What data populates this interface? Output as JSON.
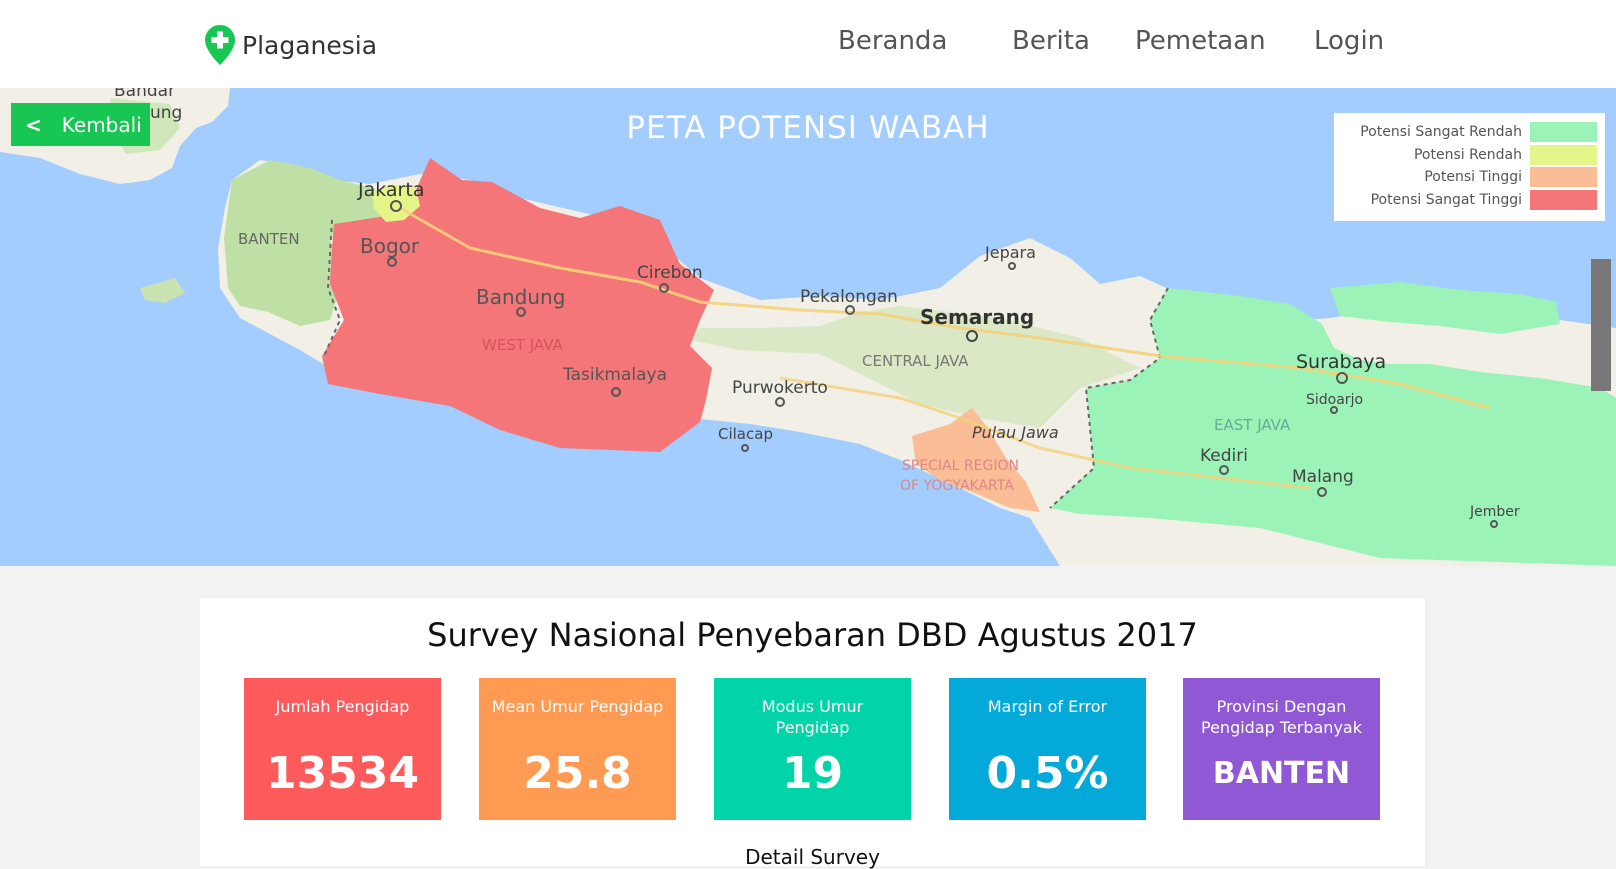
{
  "brand": {
    "name": "Plaganesia"
  },
  "nav": {
    "items": [
      "Beranda",
      "Berita",
      "Pemetaan",
      "Login"
    ]
  },
  "map": {
    "title": "PETA POTENSI WABAH",
    "back_label": "Kembali",
    "legend": [
      {
        "label": "Potensi Sangat Rendah",
        "color": "#9cf3b8"
      },
      {
        "label": "Potensi Rendah",
        "color": "#e6f58a"
      },
      {
        "label": "Potensi Tinggi",
        "color": "#fbbd95"
      },
      {
        "label": "Potensi Sangat Tinggi",
        "color": "#f57678"
      }
    ],
    "places": {
      "bandar": "Bandar",
      "lampung": "ung",
      "jakarta": "Jakarta",
      "banten": "BANTEN",
      "bogor": "Bogor",
      "cirebon": "Cirebon",
      "bandung": "Bandung",
      "west_java": "WEST JAVA",
      "tasikmalaya": "Tasikmalaya",
      "jepara": "Jepara",
      "pekalongan": "Pekalongan",
      "semarang": "Semarang",
      "central_java": "CENTRAL JAVA",
      "purwokerto": "Purwokerto",
      "cilacap": "Cilacap",
      "pulau_jawa": "Pulau Jawa",
      "special_region_1": "SPECIAL REGION",
      "special_region_2": "OF YOGYAKARTA",
      "surabaya": "Surabaya",
      "sidoarjo": "Sidoarjo",
      "east_java": "EAST JAVA",
      "kediri": "Kediri",
      "malang": "Malang",
      "jember": "Jember"
    },
    "region_colors": {
      "banten": "#bfe0a4",
      "jakarta": "#e6f58a",
      "west_java": "#f57678",
      "central_java": "#f1efe6",
      "yogyakarta": "#fbbd95",
      "east_java": "#9cf3b8"
    }
  },
  "survey": {
    "title": "Survey Nasional Penyebaran DBD Agustus 2017",
    "stats": [
      {
        "label": "Jumlah Pengidap",
        "value": "13534",
        "color": "#fd5a5b"
      },
      {
        "label": "Mean Umur Pengidap",
        "value": "25.8",
        "color": "#ff9a52"
      },
      {
        "label": "Modus Umur Pengidap",
        "value": "19",
        "color": "#00d4a8"
      },
      {
        "label": "Margin of Error",
        "value": "0.5%",
        "color": "#02a9d9"
      },
      {
        "label": "Provinsi Dengan Pengidap Terbanyak",
        "value": "BANTEN",
        "color": "#9058d4"
      }
    ],
    "detail_label": "Detail Survey"
  }
}
